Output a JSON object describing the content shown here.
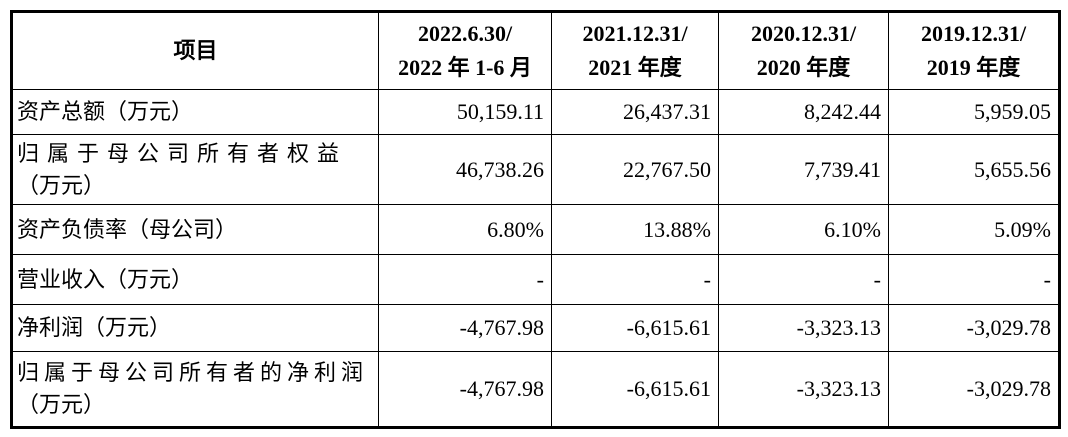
{
  "table": {
    "header": {
      "item_label": "项目",
      "periods": [
        {
          "line1": "2022.6.30/",
          "line2": "2022 年 1-6 月"
        },
        {
          "line1": "2021.12.31/",
          "line2": "2021 年度"
        },
        {
          "line1": "2020.12.31/",
          "line2": "2020 年度"
        },
        {
          "line1": "2019.12.31/",
          "line2": "2019 年度"
        }
      ]
    },
    "rows": [
      {
        "label_lines": [
          "资产总额（万元）"
        ],
        "values": [
          "50,159.11",
          "26,437.31",
          "8,242.44",
          "5,959.05"
        ]
      },
      {
        "label_lines": [
          "归属于母公司所有者权益",
          "（万元）"
        ],
        "values": [
          "46,738.26",
          "22,767.50",
          "7,739.41",
          "5,655.56"
        ]
      },
      {
        "label_lines": [
          "资产负债率（母公司）"
        ],
        "values": [
          "6.80%",
          "13.88%",
          "6.10%",
          "5.09%"
        ]
      },
      {
        "label_lines": [
          "营业收入（万元）"
        ],
        "values": [
          "-",
          "-",
          "-",
          "-"
        ]
      },
      {
        "label_lines": [
          "净利润（万元）"
        ],
        "values": [
          "-4,767.98",
          "-6,615.61",
          "-3,323.13",
          "-3,029.78"
        ]
      },
      {
        "label_lines": [
          "归属于母公司所有者的净利润",
          "（万元）"
        ],
        "values": [
          "-4,767.98",
          "-6,615.61",
          "-3,323.13",
          "-3,029.78"
        ]
      }
    ],
    "colors": {
      "border": "#000000",
      "text": "#000000",
      "background": "#ffffff"
    }
  }
}
